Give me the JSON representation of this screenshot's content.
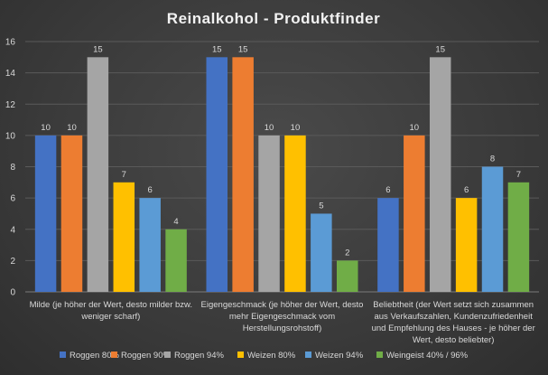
{
  "chart_data": {
    "type": "bar",
    "title": "Reinalkohol - Produktfinder",
    "categories": [
      "Milde (je höher der Wert, desto milder bzw. weniger scharf)",
      "Eigengeschmack (je höher der Wert, desto mehr Eigengeschmack vom Herstellungsrohstoff)",
      "Beliebtheit (der Wert setzt sich zusammen aus Verkaufszahlen, Kundenzufriedenheit und Empfehlung des Hauses - je höher der Wert, desto beliebter)"
    ],
    "category_lines": [
      [
        "Milde (je höher der Wert, desto milder bzw.",
        "weniger scharf)"
      ],
      [
        "Eigengeschmack (je höher der Wert, desto",
        "mehr Eigengeschmack vom",
        "Herstellungsrohstoff)"
      ],
      [
        "Beliebtheit (der Wert setzt sich zusammen",
        "aus Verkaufszahlen, Kundenzufriedenheit",
        "und Empfehlung des Hauses - je höher der",
        "Wert, desto beliebter)"
      ]
    ],
    "series": [
      {
        "name": "Roggen 80%",
        "values": [
          10,
          15,
          6
        ],
        "color": "#4472c4"
      },
      {
        "name": "Roggen 90%",
        "values": [
          10,
          15,
          10
        ],
        "color": "#ed7d31"
      },
      {
        "name": "Roggen 94%",
        "values": [
          15,
          10,
          15
        ],
        "color": "#a5a5a5"
      },
      {
        "name": "Weizen 80%",
        "values": [
          7,
          10,
          6
        ],
        "color": "#ffc000"
      },
      {
        "name": "Weizen 94%",
        "values": [
          6,
          5,
          8
        ],
        "color": "#5b9bd5"
      },
      {
        "name": "Weingeist 40% / 96%",
        "values": [
          4,
          2,
          7
        ],
        "color": "#70ad47"
      }
    ],
    "y_ticks": [
      "0",
      "2",
      "4",
      "6",
      "8",
      "10",
      "12",
      "14",
      "16"
    ],
    "ylim": [
      0,
      16
    ],
    "grid": true,
    "legend_position": "bottom",
    "data_labels": true
  }
}
